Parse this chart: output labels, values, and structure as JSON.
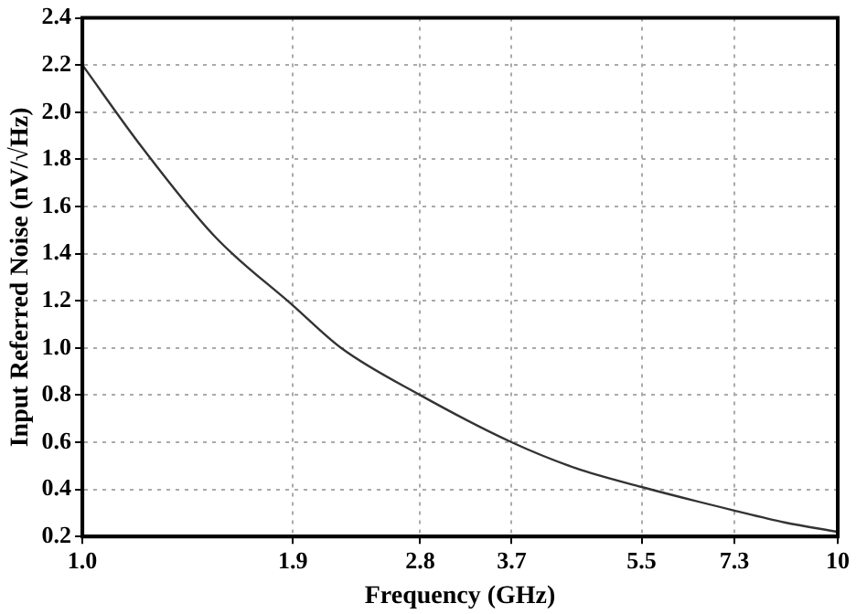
{
  "chart_data": {
    "type": "line",
    "xlabel": "Frequency (GHz)",
    "ylabel": "Input Referred Noise (nV/√Hz)",
    "log": "x",
    "x": [
      1.0,
      1.2,
      1.5,
      1.9,
      2.2,
      2.8,
      3.7,
      4.5,
      5.5,
      7.3,
      8.5,
      10
    ],
    "series": [
      {
        "color": "#333333",
        "values": [
          2.2,
          1.85,
          1.47,
          1.18,
          1.0,
          0.8,
          0.6,
          0.49,
          0.41,
          0.31,
          0.26,
          0.22
        ]
      }
    ],
    "xlim": [
      1,
      10
    ],
    "xticks": [
      {
        "value": 1,
        "label": "1.0"
      },
      1.9,
      2.8,
      3.7,
      5.5,
      7.3,
      10
    ],
    "ylim": [
      0.2,
      2.4
    ],
    "yticks": [
      0.2,
      0.4,
      0.6,
      0.8,
      {
        "value": 1,
        "label": "1.0"
      },
      1.2,
      1.4,
      1.6,
      1.8,
      {
        "value": 2,
        "label": "2.0"
      },
      2.2,
      2.4
    ],
    "grid": true,
    "marker": "none",
    "line_style": "solid",
    "legend": false
  }
}
